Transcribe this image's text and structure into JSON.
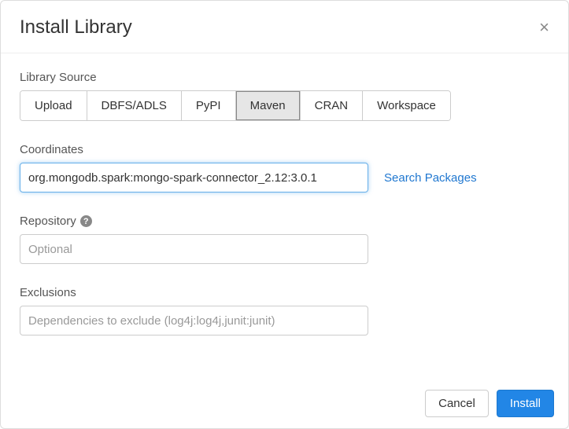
{
  "header": {
    "title": "Install Library"
  },
  "librarySource": {
    "label": "Library Source",
    "tabs": [
      {
        "label": "Upload",
        "active": false
      },
      {
        "label": "DBFS/ADLS",
        "active": false
      },
      {
        "label": "PyPI",
        "active": false
      },
      {
        "label": "Maven",
        "active": true
      },
      {
        "label": "CRAN",
        "active": false
      },
      {
        "label": "Workspace",
        "active": false
      }
    ]
  },
  "coordinates": {
    "label": "Coordinates",
    "value": "org.mongodb.spark:mongo-spark-connector_2.12:3.0.1",
    "searchLink": "Search Packages"
  },
  "repository": {
    "label": "Repository",
    "placeholder": "Optional"
  },
  "exclusions": {
    "label": "Exclusions",
    "placeholder": "Dependencies to exclude (log4j:log4j,junit:junit)"
  },
  "footer": {
    "cancel": "Cancel",
    "install": "Install"
  },
  "colors": {
    "primary": "#2286e6",
    "link": "#1f77d0",
    "border": "#cccccc",
    "text": "#333333",
    "muted": "#888888"
  }
}
